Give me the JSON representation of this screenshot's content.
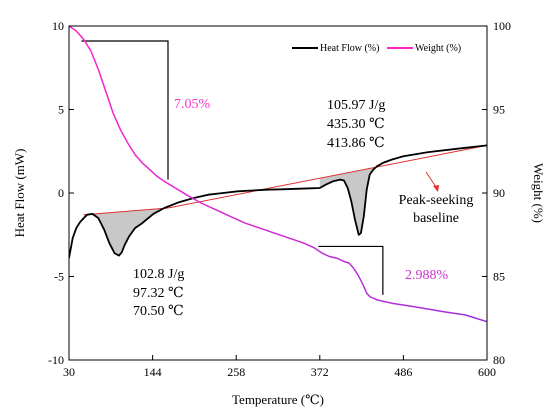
{
  "chart_data": {
    "type": "line",
    "xlabel": "Temperature (℃)",
    "ylabel_left": "Heat Flow (mW)",
    "ylabel_right": "Weight (%)",
    "xlim": [
      30,
      600
    ],
    "ylim_left": [
      -10,
      10
    ],
    "ylim_right": [
      80,
      100
    ],
    "x_ticks": [
      30,
      144,
      258,
      372,
      486,
      600
    ],
    "y_left_ticks": [
      -10,
      -5,
      0,
      5,
      10
    ],
    "y_right_ticks": [
      80,
      85,
      90,
      95,
      100
    ],
    "legend": {
      "position": "top-right",
      "entries": [
        "Heat Flow (%)",
        "Weight (%)"
      ]
    },
    "colors": {
      "heat_flow": "#000000",
      "weight_start": "#ff22cc",
      "weight_end": "#9933dd",
      "baseline": "#e03030",
      "fill": "#c8c8c8",
      "weight_loss_label_1": "#ff33cc",
      "weight_loss_label_2": "#cc33cc"
    },
    "series": [
      {
        "name": "Heat Flow (%)",
        "axis": "left",
        "x": [
          30,
          35,
          40,
          45,
          50,
          55,
          62,
          70,
          78,
          85,
          92,
          98,
          102,
          106,
          112,
          120,
          130,
          145,
          160,
          180,
          200,
          220,
          240,
          260,
          280,
          300,
          320,
          340,
          360,
          372,
          380,
          390,
          400,
          405,
          410,
          415,
          420,
          425,
          428,
          432,
          436,
          440,
          445,
          450,
          458,
          470,
          486,
          520,
          560,
          600
        ],
        "values": [
          -3.9,
          -2.7,
          -2.1,
          -1.75,
          -1.5,
          -1.3,
          -1.25,
          -1.5,
          -2.2,
          -3.0,
          -3.6,
          -3.75,
          -3.55,
          -3.1,
          -2.6,
          -2.1,
          -1.8,
          -1.25,
          -0.9,
          -0.55,
          -0.3,
          -0.1,
          0.0,
          0.1,
          0.15,
          0.2,
          0.22,
          0.25,
          0.28,
          0.3,
          0.5,
          0.7,
          0.8,
          0.75,
          0.3,
          -0.5,
          -1.6,
          -2.5,
          -2.4,
          -1.4,
          0.2,
          1.1,
          1.4,
          1.6,
          1.8,
          2.0,
          2.2,
          2.45,
          2.65,
          2.85
        ]
      },
      {
        "name": "Weight (%)",
        "axis": "right",
        "x": [
          30,
          40,
          50,
          60,
          70,
          80,
          90,
          100,
          110,
          120,
          130,
          140,
          150,
          160,
          175,
          190,
          210,
          230,
          250,
          270,
          290,
          310,
          330,
          350,
          365,
          375,
          385,
          395,
          405,
          412,
          418,
          424,
          430,
          436,
          440,
          450,
          470,
          500,
          540,
          570,
          600
        ],
        "values": [
          100,
          99.7,
          99.2,
          98.5,
          97.4,
          96.1,
          94.8,
          93.8,
          93.0,
          92.3,
          91.8,
          91.4,
          91.0,
          90.7,
          90.3,
          89.9,
          89.4,
          89.0,
          88.6,
          88.2,
          87.9,
          87.6,
          87.3,
          87.0,
          86.7,
          86.4,
          86.2,
          86.1,
          85.9,
          85.8,
          85.5,
          85.1,
          84.6,
          84.0,
          83.8,
          83.6,
          83.4,
          83.2,
          82.9,
          82.7,
          82.3
        ]
      }
    ],
    "baseline_segments": [
      {
        "x": [
          50,
          165
        ],
        "values": [
          -1.3,
          -0.9
        ]
      },
      {
        "x": [
          165,
          600
        ],
        "values": [
          -0.9,
          2.85
        ]
      }
    ],
    "annotations": {
      "weight_loss_1": "7.05%",
      "weight_loss_2": "2.988%",
      "peak_low_enthalpy": "102.8  J/g",
      "peak_low_temp_1": "97.32  ℃",
      "peak_low_temp_2": "70.50  ℃",
      "peak_high_enthalpy": "105.97  J/g",
      "peak_high_temp_1": "435.30  ℃",
      "peak_high_temp_2": "413.86  ℃",
      "baseline_label_1": "Peak-seeking",
      "baseline_label_2": "baseline"
    }
  }
}
